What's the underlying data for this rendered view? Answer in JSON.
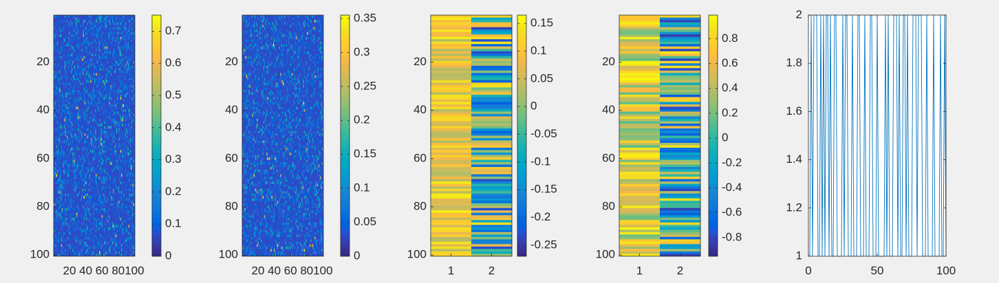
{
  "colors": {
    "background": "#f0f0f0",
    "axis": "#262626",
    "line": "#0072bd",
    "colormap": "parula"
  },
  "chart_data": [
    {
      "type": "heatmap",
      "colormap": "parula",
      "rows": 100,
      "cols": 100,
      "x_ticks": [
        "20",
        "40",
        "60",
        "80",
        "100"
      ],
      "y_ticks": [
        "20",
        "40",
        "60",
        "80",
        "100"
      ],
      "colorbar_ticks": [
        "0",
        "0.1",
        "0.2",
        "0.3",
        "0.4",
        "0.5",
        "0.6",
        "0.7"
      ],
      "clim": [
        0,
        0.75
      ],
      "description": "100x100 sparse matrix, mostly near 0 (dark blue) with scattered cyan/yellow cells"
    },
    {
      "type": "heatmap",
      "colormap": "parula",
      "rows": 100,
      "cols": 100,
      "x_ticks": [
        "20",
        "40",
        "60",
        "80",
        "100"
      ],
      "y_ticks": [
        "20",
        "40",
        "60",
        "80",
        "100"
      ],
      "colorbar_ticks": [
        "0",
        "0.05",
        "0.1",
        "0.15",
        "0.2",
        "0.25",
        "0.3",
        "0.35"
      ],
      "clim": [
        0,
        0.355
      ]
    },
    {
      "type": "heatmap",
      "colormap": "parula",
      "rows": 100,
      "cols": 2,
      "x_ticks": [
        "1",
        "2"
      ],
      "y_ticks": [
        "20",
        "40",
        "60",
        "80",
        "100"
      ],
      "colorbar_ticks": [
        "-0.25",
        "-0.2",
        "-0.15",
        "-0.1",
        "-0.05",
        "0",
        "0.05",
        "0.1",
        "0.15"
      ],
      "clim": [
        -0.27,
        0.165
      ]
    },
    {
      "type": "heatmap",
      "colormap": "parula",
      "rows": 100,
      "cols": 2,
      "x_ticks": [
        "1",
        "2"
      ],
      "y_ticks": [
        "20",
        "40",
        "60",
        "80",
        "100"
      ],
      "colorbar_ticks": [
        "-0.8",
        "-0.6",
        "-0.4",
        "-0.2",
        "0",
        "0.2",
        "0.4",
        "0.6",
        "0.8"
      ],
      "clim": [
        -0.95,
        0.99
      ]
    },
    {
      "type": "line",
      "x_ticks": [
        "0",
        "50",
        "100"
      ],
      "y_ticks": [
        "1",
        "1.2",
        "1.4",
        "1.6",
        "1.8",
        "2"
      ],
      "xlim": [
        0,
        100
      ],
      "ylim": [
        1,
        2
      ],
      "series": [
        {
          "values": [
            1,
            2,
            1,
            2,
            2,
            2,
            1,
            1,
            2,
            1,
            2,
            1,
            2,
            2,
            1,
            2,
            1,
            1,
            2,
            2,
            1,
            1,
            1,
            1,
            2,
            1,
            2,
            2,
            1,
            1,
            1,
            2,
            1,
            1,
            1,
            2,
            2,
            1,
            1,
            1,
            2,
            1,
            1,
            1,
            2,
            2,
            1,
            1,
            1,
            2,
            1,
            1,
            1,
            1,
            1,
            2,
            1,
            2,
            1,
            1,
            1,
            2,
            2,
            2,
            1,
            2,
            1,
            1,
            2,
            2,
            1,
            2,
            1,
            1,
            1,
            2,
            2,
            2,
            1,
            2,
            2,
            2,
            1,
            1,
            1,
            2,
            1,
            1,
            1,
            1,
            2,
            1,
            1,
            1,
            1,
            2,
            1,
            1,
            2,
            1
          ]
        }
      ]
    }
  ]
}
